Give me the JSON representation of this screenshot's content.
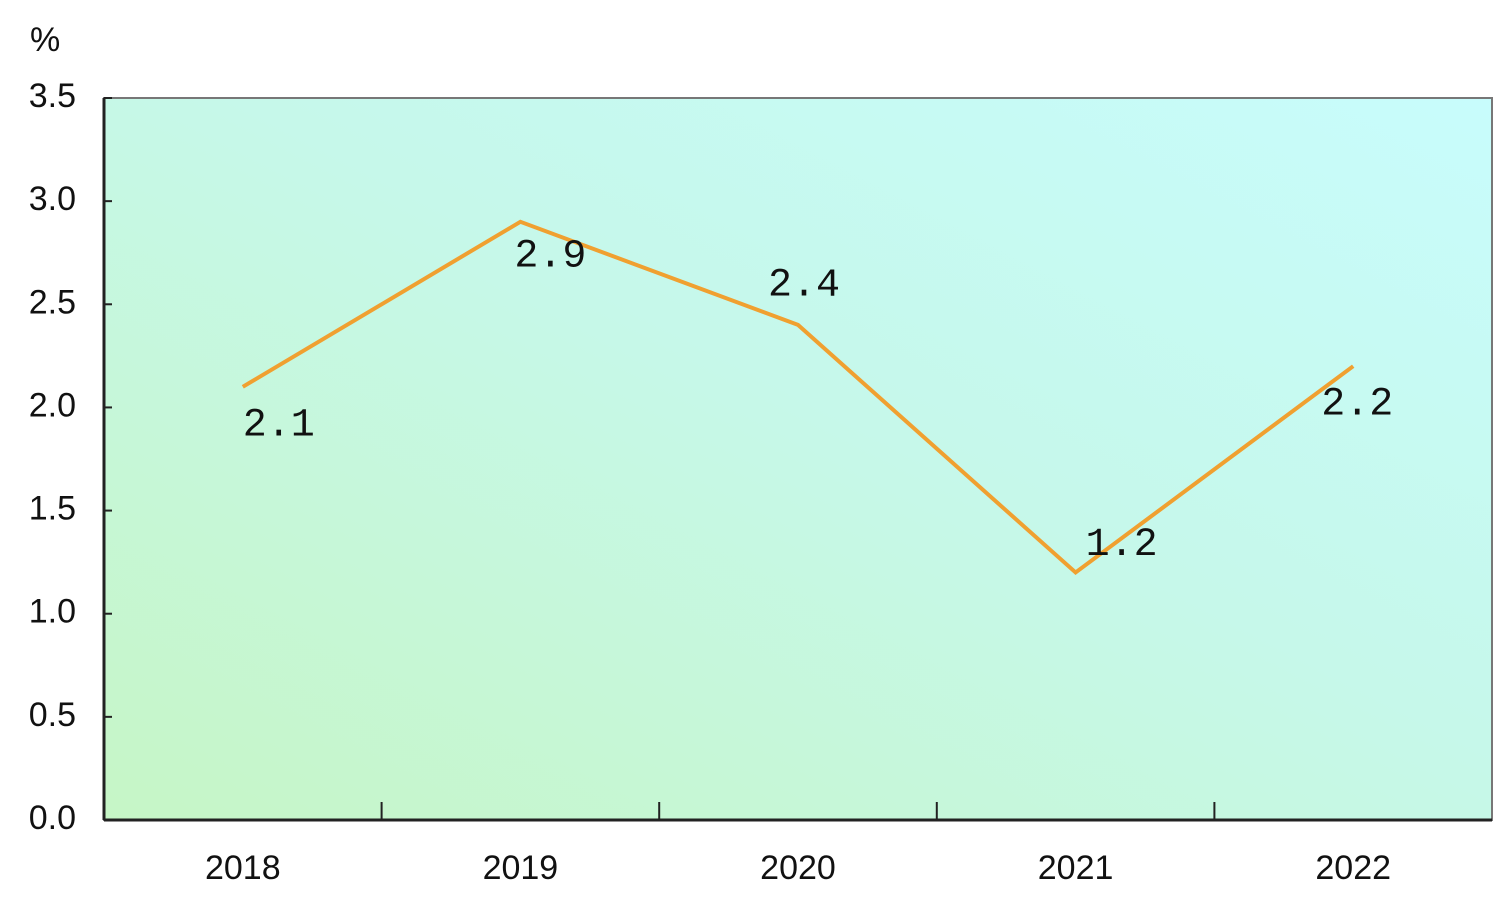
{
  "chart_data": {
    "type": "line",
    "y_label": "%",
    "categories": [
      "2018",
      "2019",
      "2020",
      "2021",
      "2022"
    ],
    "series": [
      {
        "color": "#f0a030",
        "values": [
          2.1,
          2.9,
          2.4,
          1.2,
          2.2
        ]
      }
    ],
    "ylim": [
      0,
      3.5
    ],
    "yticks": [
      {
        "value": 0,
        "label": "0.0"
      },
      0.5,
      {
        "value": 1,
        "label": "1.0"
      },
      1.5,
      {
        "value": 2,
        "label": "2.0"
      },
      2.5,
      {
        "value": 3,
        "label": "3.0"
      },
      3.5
    ],
    "grid": false
  }
}
